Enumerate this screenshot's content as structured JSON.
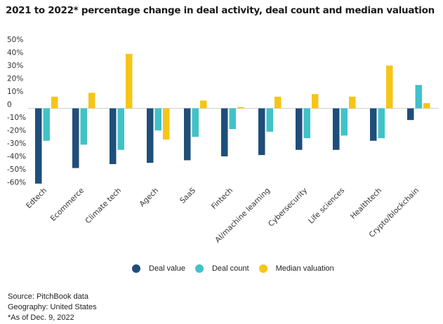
{
  "chart_data": {
    "type": "bar",
    "title": "2021 to 2022* percentage change in deal activity, deal count and median valuation",
    "xlabel": "",
    "ylabel": "",
    "ylim": [
      -60,
      50
    ],
    "yticks": [
      50,
      40,
      30,
      20,
      10,
      0,
      -10,
      -20,
      -30,
      -40,
      -50,
      -60
    ],
    "ytick_labels": [
      "50%",
      "40%",
      "30%",
      "20%",
      "10%",
      "0",
      "-10%",
      "-20%",
      "-30%",
      "-40%",
      "-50%",
      "-60%"
    ],
    "grid": false,
    "legend_position": "bottom-center",
    "categories": [
      "Edtech",
      "Ecommerce",
      "Climate tech",
      "Agech",
      "SaaS",
      "Fintech",
      "AI/machine learning",
      "Cybersecurity",
      "Life sciences",
      "Healthtech",
      "Crypto/blockchain"
    ],
    "series": [
      {
        "name": "Deal value",
        "color": "#1f4e7a",
        "values": [
          -58,
          -46,
          -43,
          -42,
          -40,
          -37,
          -36,
          -32,
          -32,
          -25,
          -9
        ]
      },
      {
        "name": "Deal count",
        "color": "#41c2c8",
        "values": [
          -25,
          -28,
          -32,
          -17,
          -22,
          -16,
          -18,
          -23,
          -21,
          -23,
          18
        ]
      },
      {
        "name": "Median valuation",
        "color": "#f5c518",
        "values": [
          9,
          12,
          42,
          -24,
          6,
          1,
          9,
          11,
          9,
          33,
          4
        ]
      }
    ]
  },
  "footer": {
    "source": "Source: PitchBook data",
    "geography": "Geography: United States",
    "note": "*As of Dec. 9, 2022"
  }
}
